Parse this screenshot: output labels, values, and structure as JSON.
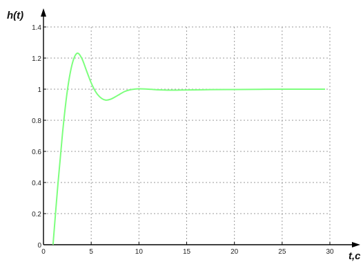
{
  "chart_data": {
    "type": "line",
    "title": "",
    "xlabel": "t,c",
    "ylabel": "h(t)",
    "xlim": [
      0,
      30
    ],
    "ylim": [
      0,
      1.4
    ],
    "grid": true,
    "xticks": [
      "0",
      "5",
      "10",
      "15",
      "20",
      "25",
      "30"
    ],
    "yticks": [
      "0",
      "0.2",
      "0.4",
      "0.6",
      "0.8",
      "1",
      "1.2",
      "1.4"
    ],
    "line_color": "#7dff7d",
    "series": [
      {
        "x": [
          1.0,
          1.5,
          2.0,
          2.5,
          3.0,
          3.5,
          4.0,
          4.5,
          5.0,
          5.5,
          6.0,
          6.5,
          7.0,
          7.5,
          8.0,
          8.5,
          9.0,
          9.5,
          10.0,
          11.0,
          12.0,
          13.0,
          14.0,
          15.0,
          17.5,
          20.0,
          22.5,
          25.0,
          27.5,
          29.5
        ],
        "values": [
          0.0,
          0.38,
          0.72,
          0.99,
          1.16,
          1.23,
          1.2,
          1.12,
          1.04,
          0.98,
          0.945,
          0.93,
          0.935,
          0.95,
          0.968,
          0.985,
          0.995,
          1.0,
          1.002,
          1.0,
          0.996,
          0.994,
          0.994,
          0.995,
          0.997,
          0.998,
          0.999,
          1.0,
          1.0,
          1.0
        ]
      }
    ]
  }
}
